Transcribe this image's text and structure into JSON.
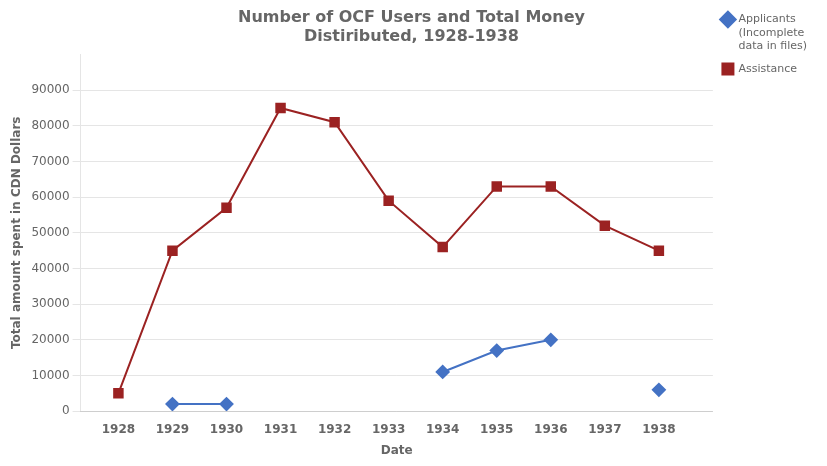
{
  "chart_data": {
    "type": "line",
    "title": "Number of OCF Users and Total Money\nDistiributed, 1928-1938",
    "xlabel": "Date",
    "ylabel": "Total amount spent in CDN Dollars",
    "x": [
      1928,
      1929,
      1930,
      1931,
      1932,
      1933,
      1934,
      1935,
      1936,
      1937,
      1938
    ],
    "series": [
      {
        "name": "Applicants\n(Incomplete\ndata in files)",
        "color": "#4472c4",
        "marker": "diamond",
        "values": [
          null,
          2000,
          2000,
          null,
          null,
          null,
          11000,
          17000,
          20000,
          null,
          6000
        ]
      },
      {
        "name": "Assistance",
        "color": "#9b2222",
        "marker": "square",
        "values": [
          5000,
          45000,
          57000,
          85000,
          81000,
          59000,
          46000,
          63000,
          63000,
          52000,
          45000
        ]
      }
    ],
    "xlim": [
      1927.3,
      1939.0
    ],
    "xticks": [
      1928,
      1929,
      1930,
      1931,
      1932,
      1933,
      1934,
      1935,
      1936,
      1937,
      1938
    ],
    "ylim": [
      0,
      100000
    ],
    "yticks": [
      0,
      10000,
      20000,
      30000,
      40000,
      50000,
      60000,
      70000,
      80000,
      90000
    ],
    "grid": "y",
    "legend": "upper right"
  }
}
